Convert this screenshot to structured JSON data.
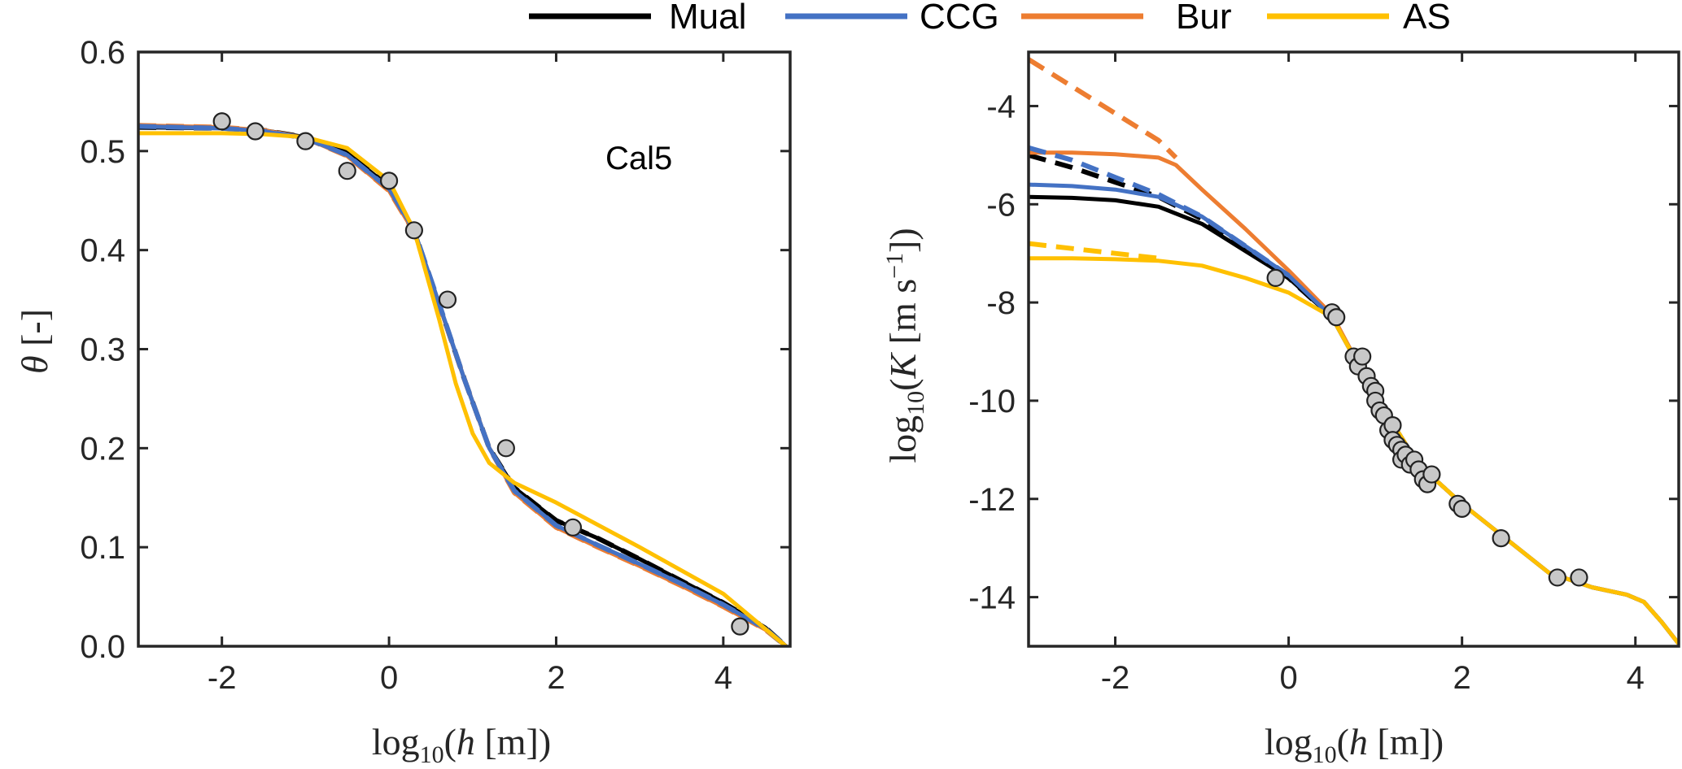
{
  "legend": [
    {
      "label": "Mual",
      "color": "#000000"
    },
    {
      "label": "CCG",
      "color": "#4472C4"
    },
    {
      "label": "Bur",
      "color": "#ED7D31"
    },
    {
      "label": "AS",
      "color": "#FFC000"
    }
  ],
  "chart_data": [
    {
      "type": "line",
      "xlabel": "log10(h [m])",
      "ylabel": "θ [-]",
      "xlim": [
        -3,
        4.8
      ],
      "ylim": [
        0,
        0.6
      ],
      "xticks": [
        -2,
        0,
        2,
        4
      ],
      "yticks": [
        0,
        0.1,
        0.2,
        0.3,
        0.4,
        0.5,
        0.6
      ],
      "annotation": "Cal5",
      "grid": false,
      "points": {
        "x": [
          -2.0,
          -1.6,
          -1.0,
          -0.5,
          0.0,
          0.3,
          0.7,
          1.4,
          2.2,
          4.2
        ],
        "y": [
          0.53,
          0.52,
          0.51,
          0.48,
          0.47,
          0.42,
          0.35,
          0.2,
          0.12,
          0.02
        ]
      },
      "series": [
        {
          "color": "#000000",
          "dashed": false,
          "x": [
            -3,
            -2,
            -1.5,
            -1,
            -0.5,
            0,
            0.3,
            0.6,
            0.9,
            1.2,
            1.5,
            2.0,
            2.5,
            3.0,
            3.5,
            4.0,
            4.5,
            4.75
          ],
          "y": [
            0.524,
            0.523,
            0.521,
            0.514,
            0.498,
            0.464,
            0.42,
            0.345,
            0.27,
            0.2,
            0.16,
            0.127,
            0.109,
            0.088,
            0.066,
            0.044,
            0.019,
            0.0
          ]
        },
        {
          "color": "#000000",
          "dashed": true,
          "x": [
            -3,
            -2,
            -1.5,
            -1,
            -0.5,
            0,
            0.3,
            0.6,
            0.9,
            1.2,
            1.5,
            2.0,
            2.5,
            3.0,
            3.5,
            4.0,
            4.5,
            4.75
          ],
          "y": [
            0.524,
            0.523,
            0.521,
            0.514,
            0.498,
            0.464,
            0.42,
            0.345,
            0.27,
            0.2,
            0.16,
            0.127,
            0.109,
            0.088,
            0.066,
            0.044,
            0.019,
            0.0
          ]
        },
        {
          "color": "#ED7D31",
          "dashed": false,
          "x": [
            -3,
            -2,
            -1.5,
            -1,
            -0.5,
            0,
            0.3,
            0.6,
            0.9,
            1.2,
            1.5,
            2.0,
            2.5,
            3.0,
            3.5,
            4.0,
            4.5,
            4.75
          ],
          "y": [
            0.526,
            0.524,
            0.521,
            0.513,
            0.495,
            0.46,
            0.418,
            0.345,
            0.27,
            0.2,
            0.155,
            0.12,
            0.1,
            0.081,
            0.061,
            0.04,
            0.017,
            0.0
          ]
        },
        {
          "color": "#ED7D31",
          "dashed": true,
          "x": [
            -3,
            -2,
            -1.5,
            -1,
            -0.5,
            0,
            0.3,
            0.6,
            0.9,
            1.2,
            1.5,
            2.0,
            2.5,
            3.0,
            3.5,
            4.0,
            4.5,
            4.75
          ],
          "y": [
            0.526,
            0.524,
            0.521,
            0.513,
            0.495,
            0.46,
            0.418,
            0.345,
            0.27,
            0.2,
            0.155,
            0.12,
            0.1,
            0.081,
            0.061,
            0.04,
            0.017,
            0.0
          ]
        },
        {
          "color": "#4472C4",
          "dashed": false,
          "x": [
            -3,
            -2,
            -1.5,
            -1,
            -0.5,
            0,
            0.3,
            0.6,
            0.9,
            1.2,
            1.5,
            2.0,
            2.5,
            3.0,
            3.5,
            4.0,
            4.5,
            4.75
          ],
          "y": [
            0.525,
            0.523,
            0.52,
            0.513,
            0.496,
            0.462,
            0.42,
            0.346,
            0.27,
            0.2,
            0.157,
            0.122,
            0.102,
            0.083,
            0.063,
            0.042,
            0.018,
            0.0
          ]
        },
        {
          "color": "#4472C4",
          "dashed": true,
          "x": [
            -3,
            -2,
            -1.5,
            -1,
            -0.5,
            0,
            0.3,
            0.6,
            0.9,
            1.2,
            1.5,
            2.0,
            2.5,
            3.0,
            3.5,
            4.0,
            4.5,
            4.75
          ],
          "y": [
            0.525,
            0.523,
            0.52,
            0.513,
            0.496,
            0.462,
            0.42,
            0.346,
            0.27,
            0.2,
            0.157,
            0.122,
            0.102,
            0.083,
            0.063,
            0.042,
            0.018,
            0.0
          ]
        },
        {
          "color": "#FFC000",
          "dashed": false,
          "x": [
            -3,
            -2,
            -1.5,
            -1,
            -0.5,
            0,
            0.3,
            0.6,
            0.8,
            1.0,
            1.2,
            1.5,
            2.0,
            3.0,
            4.0,
            4.75
          ],
          "y": [
            0.518,
            0.518,
            0.517,
            0.514,
            0.503,
            0.47,
            0.42,
            0.33,
            0.265,
            0.215,
            0.185,
            0.165,
            0.145,
            0.1,
            0.053,
            0.0
          ]
        }
      ]
    },
    {
      "type": "line",
      "xlabel": "log10(K [m s^-1])",
      "xlabel_note": "",
      "ylabel": "log10(K [m s^-1])",
      "xlim": [
        -3,
        4.5
      ],
      "ylim": [
        -15,
        -2.9
      ],
      "xticks": [
        -2,
        0,
        2,
        4
      ],
      "yticks": [
        -14,
        -12,
        -10,
        -8,
        -6,
        -4
      ],
      "grid": false,
      "points": {
        "x": [
          -0.15,
          0.5,
          0.55,
          0.75,
          0.8,
          0.85,
          0.9,
          0.95,
          1.0,
          1.0,
          1.05,
          1.1,
          1.15,
          1.2,
          1.2,
          1.25,
          1.3,
          1.3,
          1.35,
          1.4,
          1.45,
          1.5,
          1.55,
          1.6,
          1.65,
          1.95,
          2.0,
          2.45,
          3.1,
          3.35
        ],
        "y": [
          -7.5,
          -8.2,
          -8.3,
          -9.1,
          -9.3,
          -9.1,
          -9.5,
          -9.7,
          -9.8,
          -10.0,
          -10.2,
          -10.3,
          -10.6,
          -10.5,
          -10.8,
          -10.9,
          -11.0,
          -11.2,
          -11.1,
          -11.3,
          -11.2,
          -11.4,
          -11.6,
          -11.7,
          -11.5,
          -12.1,
          -12.2,
          -12.8,
          -13.6,
          -13.6
        ]
      },
      "series": [
        {
          "color": "#000000",
          "dashed": false,
          "x": [
            -3,
            -2.5,
            -2,
            -1.5,
            -1,
            -0.5,
            0,
            0.5,
            1.0,
            1.5,
            2.0,
            2.5,
            3.0,
            3.5,
            3.9,
            4.1,
            4.3,
            4.5
          ],
          "y": [
            -5.85,
            -5.87,
            -5.92,
            -6.05,
            -6.4,
            -6.95,
            -7.5,
            -8.3,
            -9.9,
            -11.3,
            -12.1,
            -12.8,
            -13.5,
            -13.8,
            -13.95,
            -14.1,
            -14.5,
            -14.95
          ]
        },
        {
          "color": "#000000",
          "dashed": true,
          "x": [
            -3,
            -2.5,
            -2,
            -1.5,
            -1,
            -0.5,
            0,
            0.5
          ],
          "y": [
            -5.0,
            -5.25,
            -5.55,
            -5.85,
            -6.3,
            -6.9,
            -7.5,
            -8.3
          ]
        },
        {
          "color": "#ED7D31",
          "dashed": false,
          "x": [
            -3,
            -2.5,
            -2,
            -1.5,
            -1.3,
            -1.0,
            -0.5,
            0,
            0.5,
            1.0,
            1.5,
            2.0,
            2.5,
            3.0,
            3.5,
            3.9,
            4.1,
            4.3,
            4.5
          ],
          "y": [
            -4.95,
            -4.95,
            -4.98,
            -5.05,
            -5.2,
            -5.7,
            -6.5,
            -7.35,
            -8.25,
            -9.9,
            -11.3,
            -12.1,
            -12.8,
            -13.5,
            -13.8,
            -13.95,
            -14.1,
            -14.5,
            -14.95
          ]
        },
        {
          "color": "#ED7D31",
          "dashed": true,
          "x": [
            -3,
            -2.5,
            -2,
            -1.5,
            -1.3
          ],
          "y": [
            -3.05,
            -3.6,
            -4.15,
            -4.7,
            -5.05
          ]
        },
        {
          "color": "#4472C4",
          "dashed": false,
          "x": [
            -3,
            -2.5,
            -2,
            -1.5,
            -1,
            -0.5,
            0,
            0.5,
            1.0,
            1.5,
            2.0,
            2.5,
            3.0,
            3.5,
            3.9,
            4.1,
            4.3,
            4.5
          ],
          "y": [
            -5.6,
            -5.63,
            -5.7,
            -5.85,
            -6.25,
            -6.85,
            -7.45,
            -8.3,
            -9.9,
            -11.3,
            -12.1,
            -12.8,
            -13.5,
            -13.8,
            -13.95,
            -14.1,
            -14.5,
            -14.95
          ]
        },
        {
          "color": "#4472C4",
          "dashed": true,
          "x": [
            -3,
            -2.5,
            -2,
            -1.5,
            -1,
            -0.5,
            0
          ],
          "y": [
            -4.85,
            -5.1,
            -5.45,
            -5.8,
            -6.25,
            -6.85,
            -7.45
          ]
        },
        {
          "color": "#FFC000",
          "dashed": false,
          "x": [
            -3,
            -2.5,
            -2,
            -1.5,
            -1,
            -0.5,
            0,
            0.5,
            1.0,
            1.5,
            2.0,
            2.5,
            3.0,
            3.5,
            3.9,
            4.1,
            4.3,
            4.5
          ],
          "y": [
            -7.1,
            -7.1,
            -7.12,
            -7.15,
            -7.25,
            -7.5,
            -7.8,
            -8.3,
            -9.9,
            -11.3,
            -12.1,
            -12.8,
            -13.5,
            -13.8,
            -13.95,
            -14.1,
            -14.5,
            -14.95
          ]
        },
        {
          "color": "#FFC000",
          "dashed": true,
          "x": [
            -3,
            -2.5,
            -2,
            -1.5
          ],
          "y": [
            -6.8,
            -6.9,
            -7.0,
            -7.1
          ]
        }
      ]
    }
  ]
}
